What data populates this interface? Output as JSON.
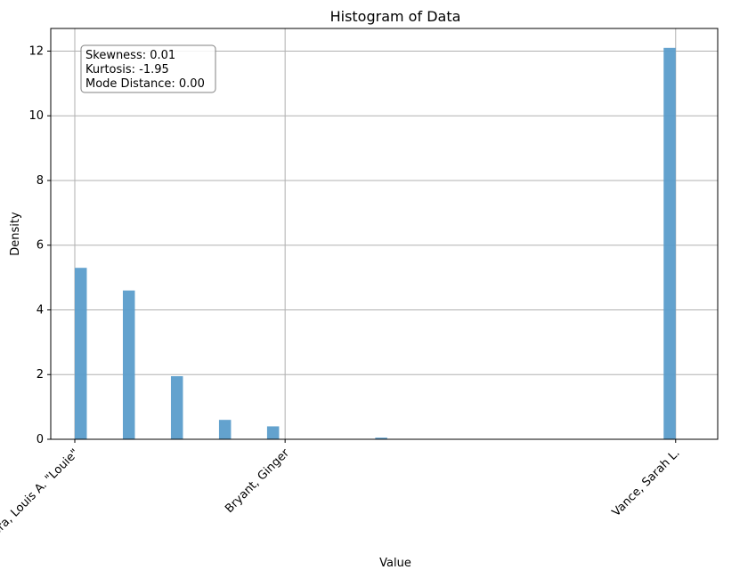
{
  "chart_data": {
    "type": "bar",
    "title": "Histogram of Data",
    "xlabel": "Value",
    "ylabel": "Density",
    "xlim": [
      -0.08,
      2.14
    ],
    "ylim": [
      0,
      12.7
    ],
    "x_ticks": [
      {
        "value": 0,
        "label": "Flora, Louis A. \"Louie\""
      },
      {
        "value": 0.7,
        "label": "Bryant, Ginger"
      },
      {
        "value": 2,
        "label": "Vance, Sarah L."
      }
    ],
    "y_ticks": [
      0,
      2,
      4,
      6,
      8,
      10,
      12
    ],
    "bin_width": 0.04,
    "bars": [
      {
        "x": 0,
        "value": 5.3
      },
      {
        "x": 0.16,
        "value": 4.6
      },
      {
        "x": 0.32,
        "value": 1.95
      },
      {
        "x": 0.48,
        "value": 0.6
      },
      {
        "x": 0.64,
        "value": 0.4
      },
      {
        "x": 1.0,
        "value": 0.05
      },
      {
        "x": 1.96,
        "value": 12.1
      }
    ],
    "grid": true,
    "bar_color": "#5b9dcb",
    "stats_box": {
      "lines": [
        "Skewness: 0.01",
        "Kurtosis: -1.95",
        "Mode Distance: 0.00"
      ],
      "position": "top-left"
    }
  }
}
